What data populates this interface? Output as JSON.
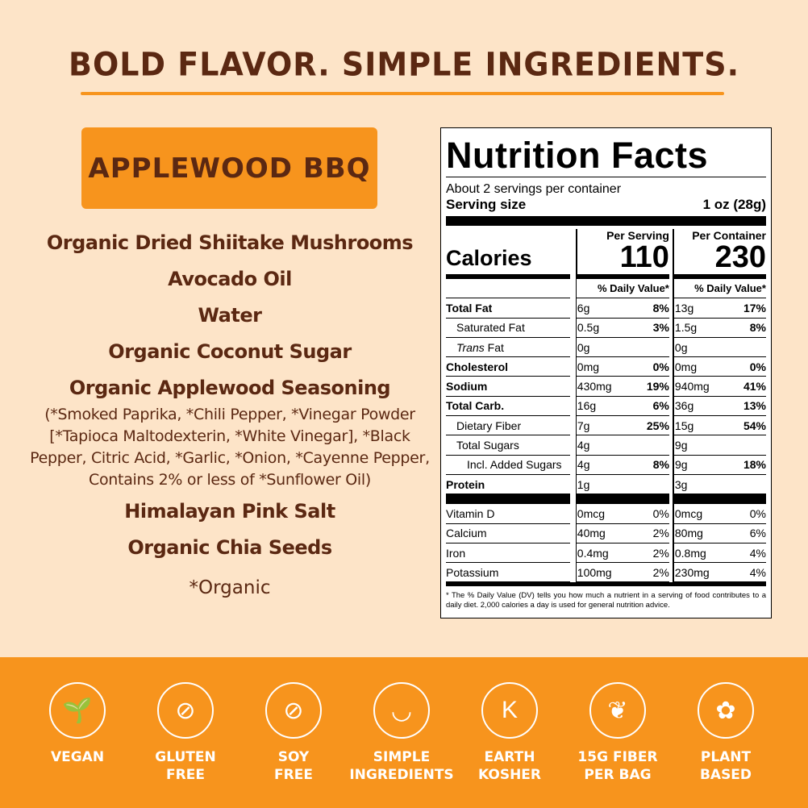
{
  "headline": "BOLD FLAVOR. SIMPLE INGREDIENTS.",
  "flavor": "APPLEWOOD BBQ",
  "ingredients": [
    "Organic Dried Shiitake Mushrooms",
    "Avocado Oil",
    "Water",
    "Organic Coconut Sugar",
    "Organic Applewood Seasoning"
  ],
  "seasoning_detail": "(*Smoked Paprika, *Chili Pepper, *Vinegar Powder [*Tapioca Maltodexterin, *White Vinegar], *Black Pepper, Citric Acid, *Garlic, *Onion, *Cayenne Pepper, Contains 2% or less of *Sunflower Oil)",
  "ingredients_2": [
    "Himalayan Pink Salt",
    "Organic Chia Seeds"
  ],
  "organic_note": "*Organic",
  "nutrition": {
    "title": "Nutrition Facts",
    "servings": "About 2 servings per container",
    "serving_size_label": "Serving size",
    "serving_size": "1 oz (28g)",
    "calories_label": "Calories",
    "per_serving": "Per Serving",
    "per_container": "Per Container",
    "cal_serving": "110",
    "cal_container": "230",
    "dv_label": "% Daily Value*",
    "rows": [
      {
        "name": "Total Fat",
        "bold": true,
        "indent": 0,
        "s": "6g",
        "sp": "8%",
        "c": "13g",
        "cp": "17%"
      },
      {
        "name": "Saturated Fat",
        "indent": 1,
        "s": "0.5g",
        "sp": "3%",
        "c": "1.5g",
        "cp": "8%"
      },
      {
        "name": "Trans Fat",
        "indent": 1,
        "italic": true,
        "s": "0g",
        "sp": "",
        "c": "0g",
        "cp": ""
      },
      {
        "name": "Cholesterol",
        "bold": true,
        "indent": 0,
        "s": "0mg",
        "sp": "0%",
        "c": "0mg",
        "cp": "0%"
      },
      {
        "name": "Sodium",
        "bold": true,
        "indent": 0,
        "s": "430mg",
        "sp": "19%",
        "c": "940mg",
        "cp": "41%"
      },
      {
        "name": "Total Carb.",
        "bold": true,
        "indent": 0,
        "s": "16g",
        "sp": "6%",
        "c": "36g",
        "cp": "13%"
      },
      {
        "name": "Dietary Fiber",
        "indent": 1,
        "s": "7g",
        "sp": "25%",
        "c": "15g",
        "cp": "54%"
      },
      {
        "name": "Total Sugars",
        "indent": 1,
        "s": "4g",
        "sp": "",
        "c": "9g",
        "cp": ""
      },
      {
        "name": "Incl. Added Sugars",
        "indent": 2,
        "s": "4g",
        "sp": "8%",
        "c": "9g",
        "cp": "18%"
      },
      {
        "name": "Protein",
        "bold": true,
        "indent": 0,
        "s": "1g",
        "sp": "",
        "c": "3g",
        "cp": ""
      }
    ],
    "vitamins": [
      {
        "name": "Vitamin D",
        "s": "0mcg",
        "sp": "0%",
        "c": "0mcg",
        "cp": "0%"
      },
      {
        "name": "Calcium",
        "s": "40mg",
        "sp": "2%",
        "c": "80mg",
        "cp": "6%"
      },
      {
        "name": "Iron",
        "s": "0.4mg",
        "sp": "2%",
        "c": "0.8mg",
        "cp": "4%"
      },
      {
        "name": "Potassium",
        "s": "100mg",
        "sp": "2%",
        "c": "230mg",
        "cp": "4%"
      }
    ],
    "footnote": "* The % Daily Value (DV) tells you how much a nutrient in a serving of food contributes to a daily diet. 2,000 calories a day is used for general nutrition advice."
  },
  "badges": [
    {
      "label": "VEGAN",
      "icon": "sprout-icon",
      "glyph": "🌱"
    },
    {
      "label": "GLUTEN\nFREE",
      "icon": "wheat-crossed-icon",
      "glyph": "⊘"
    },
    {
      "label": "SOY\nFREE",
      "icon": "soy-crossed-icon",
      "glyph": "⊘"
    },
    {
      "label": "SIMPLE\nINGREDIENTS",
      "icon": "mortar-bowl-icon",
      "glyph": "◡"
    },
    {
      "label": "EARTH\nKOSHER",
      "icon": "globe-k-icon",
      "glyph": "K"
    },
    {
      "label": "15G FIBER\nPER BAG",
      "icon": "leaf-icon",
      "glyph": "❦"
    },
    {
      "label": "PLANT\nBASED",
      "icon": "certified-plant-based-icon",
      "glyph": "✿"
    }
  ],
  "colors": {
    "background": "#fde4c8",
    "brown": "#5b2812",
    "orange": "#f7941d"
  }
}
